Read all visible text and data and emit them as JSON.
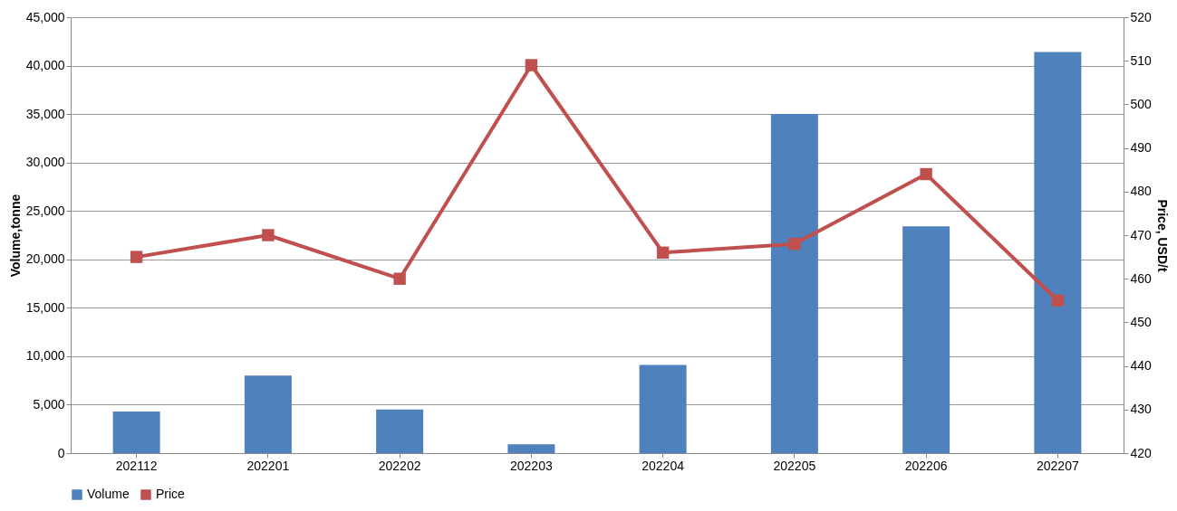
{
  "chart_data": {
    "type": "bar",
    "categories": [
      "202112",
      "202201",
      "202202",
      "202203",
      "202204",
      "202205",
      "202206",
      "202207"
    ],
    "series": [
      {
        "name": "Volume",
        "color": "#4f81bd",
        "values": [
          4300,
          8000,
          4500,
          900,
          9100,
          35000,
          23400,
          41400
        ]
      },
      {
        "name": "Price",
        "type": "line",
        "axis": "y2",
        "color": "#c0504d",
        "marker": "square",
        "line_style": "solid",
        "values": [
          465,
          470,
          460,
          509,
          466,
          468,
          484,
          455
        ]
      }
    ],
    "ylabel": "Volume,tonne",
    "y2label": "Price, USD/t",
    "ylim": [
      0,
      45000
    ],
    "yticks": [
      {
        "value": 0,
        "label": "0"
      },
      {
        "value": 5000,
        "label": "5,000"
      },
      {
        "value": 10000,
        "label": "10,000"
      },
      {
        "value": 15000,
        "label": "15,000"
      },
      {
        "value": 20000,
        "label": "20,000"
      },
      {
        "value": 25000,
        "label": "25,000"
      },
      {
        "value": 30000,
        "label": "30,000"
      },
      {
        "value": 35000,
        "label": "35,000"
      },
      {
        "value": 40000,
        "label": "40,000"
      },
      {
        "value": 45000,
        "label": "45,000"
      }
    ],
    "y2lim": [
      420,
      520
    ],
    "y2ticks": [
      420,
      430,
      440,
      450,
      460,
      470,
      480,
      490,
      500,
      510,
      520
    ],
    "grid": "y",
    "legend": "bottom"
  }
}
